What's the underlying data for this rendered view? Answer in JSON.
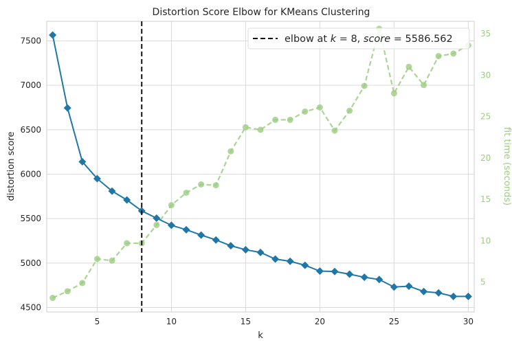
{
  "chart_data": {
    "type": "line",
    "title": "Distortion Score Elbow for KMeans Clustering",
    "xlabel": "k",
    "ylabel": "distortion score",
    "y2label": "fit time (seconds)",
    "xlim": [
      1.6,
      30.4
    ],
    "ylim": [
      4450,
      7720
    ],
    "y2lim": [
      1.4,
      36.5
    ],
    "xticks": [
      5,
      10,
      15,
      20,
      25,
      30
    ],
    "yticks": [
      4500,
      5000,
      5500,
      6000,
      6500,
      7000,
      7500
    ],
    "y2ticks": [
      5,
      10,
      15,
      20,
      25,
      30,
      35
    ],
    "grid": true,
    "legend_position": "top-right",
    "elbow": {
      "k": 8,
      "score": 5586.562,
      "label_prefix": "elbow at ",
      "label_k": "k",
      "label_eq_k": " = 8, ",
      "label_score": "score",
      "label_eq_score": " = 5586.562"
    },
    "series": [
      {
        "name": "distortion score",
        "axis": "left",
        "color": "#1f77a8",
        "marker": "diamond",
        "x": [
          2,
          3,
          4,
          5,
          6,
          7,
          8,
          9,
          10,
          11,
          12,
          13,
          14,
          15,
          16,
          17,
          18,
          19,
          20,
          21,
          22,
          23,
          24,
          25,
          26,
          27,
          28,
          29,
          30
        ],
        "values": [
          7565,
          6745,
          6140,
          5950,
          5810,
          5710,
          5587,
          5505,
          5425,
          5375,
          5315,
          5260,
          5195,
          5150,
          5120,
          5045,
          5020,
          4975,
          4910,
          4905,
          4875,
          4840,
          4815,
          4730,
          4740,
          4680,
          4665,
          4625,
          4625
        ]
      },
      {
        "name": "fit time (seconds)",
        "axis": "right",
        "color": "#9ccc83",
        "marker": "circle",
        "x": [
          2,
          3,
          4,
          5,
          6,
          7,
          8,
          9,
          10,
          11,
          12,
          13,
          14,
          15,
          16,
          17,
          18,
          19,
          20,
          21,
          22,
          23,
          24,
          25,
          26,
          27,
          28,
          29,
          30
        ],
        "values": [
          3.1,
          3.9,
          4.9,
          7.8,
          7.6,
          9.7,
          9.7,
          11.9,
          14.3,
          15.8,
          16.8,
          16.7,
          20.8,
          23.7,
          23.4,
          24.6,
          24.6,
          25.6,
          26.1,
          23.3,
          25.7,
          28.7,
          35.6,
          27.8,
          31.0,
          28.8,
          32.3,
          32.6,
          33.6
        ]
      }
    ]
  }
}
